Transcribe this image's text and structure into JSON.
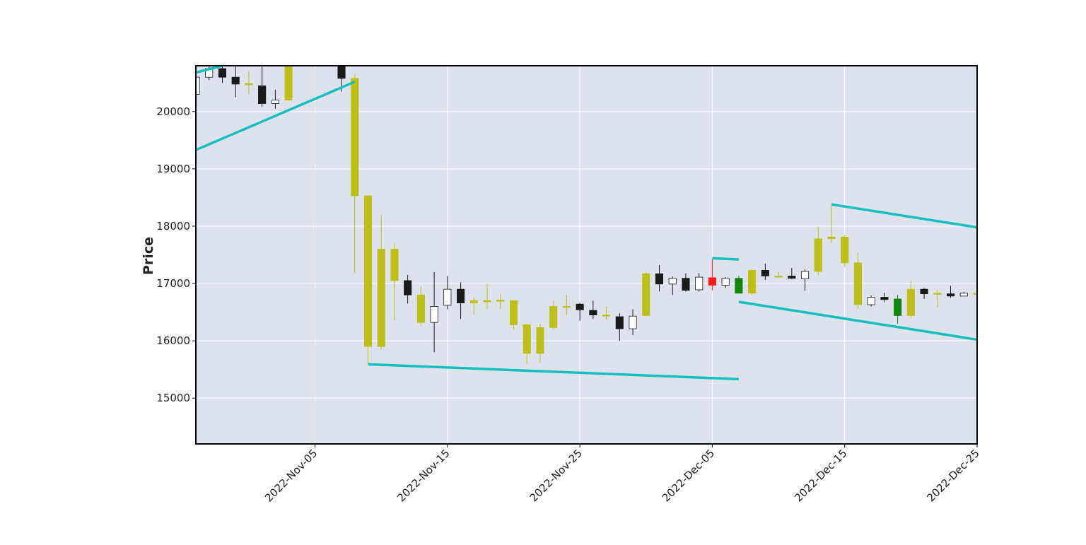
{
  "chart_data": {
    "type": "candlestick",
    "ylabel": "Price",
    "xlabel": "",
    "ylim": [
      14200,
      20800
    ],
    "xlim": [
      "2022-10-27",
      "2022-12-25"
    ],
    "grid": true,
    "y_ticks": [
      15000,
      16000,
      17000,
      18000,
      19000,
      20000
    ],
    "x_ticks": [
      "2022-Nov-05",
      "2022-Nov-15",
      "2022-Nov-25",
      "2022-Dec-05",
      "2022-Dec-15",
      "2022-Dec-25"
    ],
    "candles": [
      {
        "date": "2022-10-27",
        "open": 20300,
        "high": 20600,
        "low": 20300,
        "close": 20600,
        "color": "#ffffff"
      },
      {
        "date": "2022-10-28",
        "open": 20600,
        "high": 20800,
        "low": 20550,
        "close": 20750,
        "color": "#ffffff"
      },
      {
        "date": "2022-10-29",
        "open": 20750,
        "high": 20800,
        "low": 20500,
        "close": 20600,
        "color": "#1a1a1a"
      },
      {
        "date": "2022-10-30",
        "open": 20600,
        "high": 20800,
        "low": 20250,
        "close": 20480,
        "color": "#1a1a1a"
      },
      {
        "date": "2022-10-31",
        "open": 20490,
        "high": 20700,
        "low": 20300,
        "close": 20470,
        "color": "#bfbf1c"
      },
      {
        "date": "2022-11-01",
        "open": 20450,
        "high": 20800,
        "low": 20080,
        "close": 20140,
        "color": "#1a1a1a"
      },
      {
        "date": "2022-11-02",
        "open": 20140,
        "high": 20380,
        "low": 20050,
        "close": 20200,
        "color": "#ffffff"
      },
      {
        "date": "2022-11-03",
        "open": 20800,
        "high": 20800,
        "low": 20200,
        "close": 20200,
        "color": "#bfbf1c"
      },
      {
        "date": "2022-11-07",
        "open": 20800,
        "high": 20800,
        "low": 20350,
        "close": 20580,
        "color": "#1a1a1a"
      },
      {
        "date": "2022-11-08",
        "open": 20580,
        "high": 20650,
        "low": 17180,
        "close": 18530,
        "color": "#bfbf1c"
      },
      {
        "date": "2022-11-09",
        "open": 18530,
        "high": 18530,
        "low": 15600,
        "close": 15900,
        "color": "#bfbf1c"
      },
      {
        "date": "2022-11-10",
        "open": 17600,
        "high": 18200,
        "low": 15850,
        "close": 15900,
        "color": "#bfbf1c"
      },
      {
        "date": "2022-11-11",
        "open": 17600,
        "high": 17700,
        "low": 16350,
        "close": 17050,
        "color": "#bfbf1c"
      },
      {
        "date": "2022-11-12",
        "open": 17050,
        "high": 17150,
        "low": 16650,
        "close": 16800,
        "color": "#1a1a1a"
      },
      {
        "date": "2022-11-13",
        "open": 16800,
        "high": 16950,
        "low": 16250,
        "close": 16320,
        "color": "#bfbf1c"
      },
      {
        "date": "2022-11-14",
        "open": 16320,
        "high": 17200,
        "low": 15800,
        "close": 16600,
        "color": "#ffffff"
      },
      {
        "date": "2022-11-15",
        "open": 16620,
        "high": 17130,
        "low": 16550,
        "close": 16900,
        "color": "#ffffff"
      },
      {
        "date": "2022-11-16",
        "open": 16900,
        "high": 17020,
        "low": 16380,
        "close": 16660,
        "color": "#1a1a1a"
      },
      {
        "date": "2022-11-17",
        "open": 16700,
        "high": 16750,
        "low": 16450,
        "close": 16660,
        "color": "#bfbf1c"
      },
      {
        "date": "2022-11-18",
        "open": 16700,
        "high": 17000,
        "low": 16550,
        "close": 16680,
        "color": "#bfbf1c"
      },
      {
        "date": "2022-11-19",
        "open": 16710,
        "high": 16820,
        "low": 16550,
        "close": 16690,
        "color": "#bfbf1c"
      },
      {
        "date": "2022-11-20",
        "open": 16700,
        "high": 16710,
        "low": 16200,
        "close": 16280,
        "color": "#bfbf1c"
      },
      {
        "date": "2022-11-21",
        "open": 16280,
        "high": 16300,
        "low": 15600,
        "close": 15780,
        "color": "#bfbf1c"
      },
      {
        "date": "2022-11-22",
        "open": 16230,
        "high": 16300,
        "low": 15620,
        "close": 15780,
        "color": "#bfbf1c"
      },
      {
        "date": "2022-11-23",
        "open": 16600,
        "high": 16700,
        "low": 16200,
        "close": 16230,
        "color": "#bfbf1c"
      },
      {
        "date": "2022-11-24",
        "open": 16600,
        "high": 16800,
        "low": 16450,
        "close": 16600,
        "color": "#bfbf1c"
      },
      {
        "date": "2022-11-25",
        "open": 16640,
        "high": 16660,
        "low": 16350,
        "close": 16540,
        "color": "#1a1a1a"
      },
      {
        "date": "2022-11-26",
        "open": 16530,
        "high": 16700,
        "low": 16380,
        "close": 16450,
        "color": "#1a1a1a"
      },
      {
        "date": "2022-11-27",
        "open": 16450,
        "high": 16600,
        "low": 16370,
        "close": 16430,
        "color": "#bfbf1c"
      },
      {
        "date": "2022-11-28",
        "open": 16420,
        "high": 16480,
        "low": 16000,
        "close": 16210,
        "color": "#1a1a1a"
      },
      {
        "date": "2022-11-29",
        "open": 16210,
        "high": 16550,
        "low": 16100,
        "close": 16430,
        "color": "#ffffff"
      },
      {
        "date": "2022-11-30",
        "open": 16440,
        "high": 17200,
        "low": 16430,
        "close": 17170,
        "color": "#bfbf1c"
      },
      {
        "date": "2022-12-01",
        "open": 17170,
        "high": 17320,
        "low": 16860,
        "close": 16990,
        "color": "#1a1a1a"
      },
      {
        "date": "2022-12-02",
        "open": 16990,
        "high": 17120,
        "low": 16800,
        "close": 17090,
        "color": "#ffffff"
      },
      {
        "date": "2022-12-03",
        "open": 17090,
        "high": 17180,
        "low": 16860,
        "close": 16880,
        "color": "#1a1a1a"
      },
      {
        "date": "2022-12-04",
        "open": 16890,
        "high": 17180,
        "low": 16860,
        "close": 17110,
        "color": "#ffffff"
      },
      {
        "date": "2022-12-05",
        "open": 17100,
        "high": 17420,
        "low": 16880,
        "close": 16970,
        "color": "#ff1a1a"
      },
      {
        "date": "2022-12-06",
        "open": 16970,
        "high": 17110,
        "low": 16920,
        "close": 17090,
        "color": "#ffffff"
      },
      {
        "date": "2022-12-07",
        "open": 17090,
        "high": 17130,
        "low": 16830,
        "close": 16830,
        "color": "#13860f"
      },
      {
        "date": "2022-12-08",
        "open": 16830,
        "high": 17250,
        "low": 16800,
        "close": 17230,
        "color": "#bfbf1c"
      },
      {
        "date": "2022-12-09",
        "open": 17230,
        "high": 17350,
        "low": 17060,
        "close": 17130,
        "color": "#1a1a1a"
      },
      {
        "date": "2022-12-10",
        "open": 17130,
        "high": 17200,
        "low": 17100,
        "close": 17130,
        "color": "#bfbf1c"
      },
      {
        "date": "2022-12-11",
        "open": 17130,
        "high": 17270,
        "low": 17080,
        "close": 17090,
        "color": "#1a1a1a"
      },
      {
        "date": "2022-12-12",
        "open": 17080,
        "high": 17250,
        "low": 16870,
        "close": 17210,
        "color": "#ffffff"
      },
      {
        "date": "2022-12-13",
        "open": 17210,
        "high": 17990,
        "low": 17150,
        "close": 17780,
        "color": "#bfbf1c"
      },
      {
        "date": "2022-12-14",
        "open": 17780,
        "high": 18350,
        "low": 17700,
        "close": 17810,
        "color": "#bfbf1c"
      },
      {
        "date": "2022-12-15",
        "open": 17810,
        "high": 17850,
        "low": 17290,
        "close": 17360,
        "color": "#bfbf1c"
      },
      {
        "date": "2022-12-16",
        "open": 17360,
        "high": 17530,
        "low": 16550,
        "close": 16630,
        "color": "#bfbf1c"
      },
      {
        "date": "2022-12-17",
        "open": 16630,
        "high": 16790,
        "low": 16600,
        "close": 16760,
        "color": "#ffffff"
      },
      {
        "date": "2022-12-18",
        "open": 16760,
        "high": 16840,
        "low": 16670,
        "close": 16720,
        "color": "#1a1a1a"
      },
      {
        "date": "2022-12-19",
        "open": 16730,
        "high": 16800,
        "low": 16300,
        "close": 16440,
        "color": "#13860f"
      },
      {
        "date": "2022-12-20",
        "open": 16440,
        "high": 17050,
        "low": 16400,
        "close": 16900,
        "color": "#bfbf1c"
      },
      {
        "date": "2022-12-21",
        "open": 16900,
        "high": 16920,
        "low": 16730,
        "close": 16820,
        "color": "#1a1a1a"
      },
      {
        "date": "2022-12-22",
        "open": 16820,
        "high": 16880,
        "low": 16580,
        "close": 16830,
        "color": "#bfbf1c"
      },
      {
        "date": "2022-12-23",
        "open": 16820,
        "high": 16960,
        "low": 16750,
        "close": 16780,
        "color": "#1a1a1a"
      },
      {
        "date": "2022-12-24",
        "open": 16780,
        "high": 16850,
        "low": 16780,
        "close": 16830,
        "color": "#ffffff"
      },
      {
        "date": "2022-12-25",
        "open": 16830,
        "high": 16850,
        "low": 16720,
        "close": 16820,
        "color": "#bfbf1c"
      }
    ],
    "trend_lines": [
      {
        "x": [
          "2022-10-27",
          "2022-11-08"
        ],
        "y": [
          19330,
          20520
        ]
      },
      {
        "x": [
          "2022-10-27",
          "2022-10-29"
        ],
        "y": [
          20680,
          20800
        ]
      },
      {
        "x": [
          "2022-11-09",
          "2022-12-07"
        ],
        "y": [
          15590,
          15330
        ]
      },
      {
        "x": [
          "2022-12-05",
          "2022-12-07"
        ],
        "y": [
          17440,
          17420
        ]
      },
      {
        "x": [
          "2022-12-07",
          "2022-12-25"
        ],
        "y": [
          16680,
          16020
        ]
      },
      {
        "x": [
          "2022-12-14",
          "2022-12-25"
        ],
        "y": [
          18380,
          17980
        ]
      }
    ]
  },
  "colors": {
    "plot_background": "#dde2ed",
    "grid": "#ffffff",
    "trend_line": "#15c0c0"
  }
}
